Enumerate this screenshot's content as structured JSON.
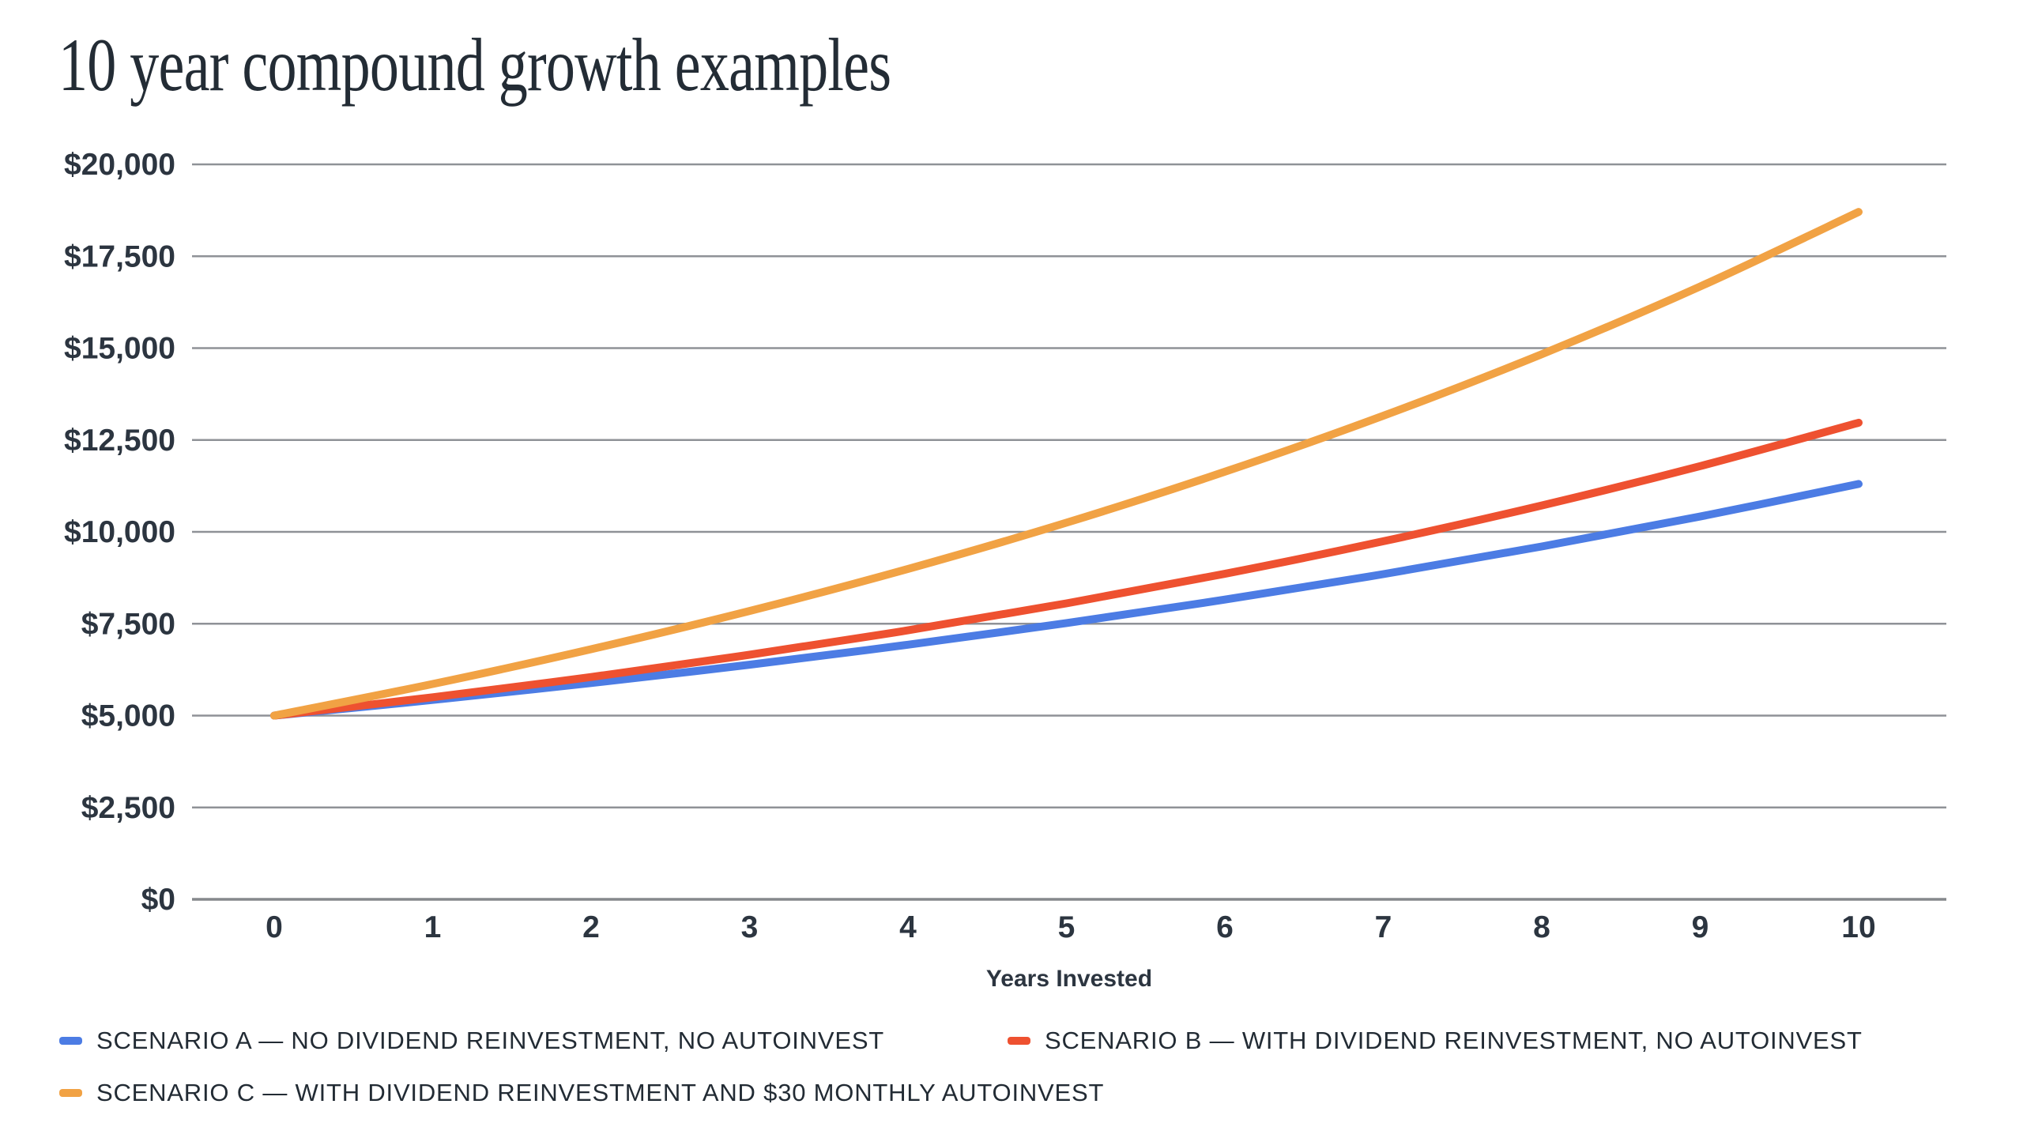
{
  "title": "10 year compound growth examples",
  "chart_data": {
    "type": "line",
    "title": "10 year compound growth examples",
    "x": [
      0,
      1,
      2,
      3,
      4,
      5,
      6,
      7,
      8,
      9,
      10
    ],
    "xtick_labels": [
      "0",
      "1",
      "2",
      "3",
      "4",
      "5",
      "6",
      "7",
      "8",
      "9",
      "10"
    ],
    "xlabel": "Years Invested",
    "ylabel": "",
    "ylim": [
      0,
      20000
    ],
    "ytick_step": 2500,
    "ytick_labels": [
      "$0",
      "$2,500",
      "$5,000",
      "$7,500",
      "$10,000",
      "$12,500",
      "$15,000",
      "$17,500",
      "$20,000"
    ],
    "grid": "horizontal",
    "legend_position": "bottom-left",
    "series": [
      {
        "id": "scenario-a",
        "name": "SCENARIO A — NO DIVIDEND REINVESTMENT, NO AUTOINVEST",
        "color": "#4C7CE4",
        "values": [
          5000,
          5425,
          5886,
          6386,
          6929,
          7518,
          8157,
          8850,
          9602,
          10418,
          11304
        ]
      },
      {
        "id": "scenario-b",
        "name": "SCENARIO B — WITH DIVIDEND REINVESTMENT, NO AUTOINVEST",
        "color": "#EE5130",
        "values": [
          5000,
          5500,
          6050,
          6655,
          7321,
          8053,
          8858,
          9744,
          10718,
          11790,
          12969
        ]
      },
      {
        "id": "scenario-c",
        "name": "SCENARIO C — WITH DIVIDEND REINVESTMENT AND $30 MONTHLY AUTOINVEST",
        "color": "#F1A244",
        "values": [
          5000,
          5860,
          6806,
          7847,
          8991,
          10250,
          11636,
          13159,
          14835,
          16678,
          18706
        ]
      }
    ]
  },
  "colors": {
    "background": "#FFFFFF",
    "gridline": "#8F9297",
    "axis_line": "#85888C",
    "tick_text": "#2C3540",
    "title_text": "#232C35",
    "legend_text": "#222B34",
    "scenario_a_blue": "#4C7CE4",
    "scenario_b_red": "#EE5130",
    "scenario_c_orange": "#F1A244"
  }
}
